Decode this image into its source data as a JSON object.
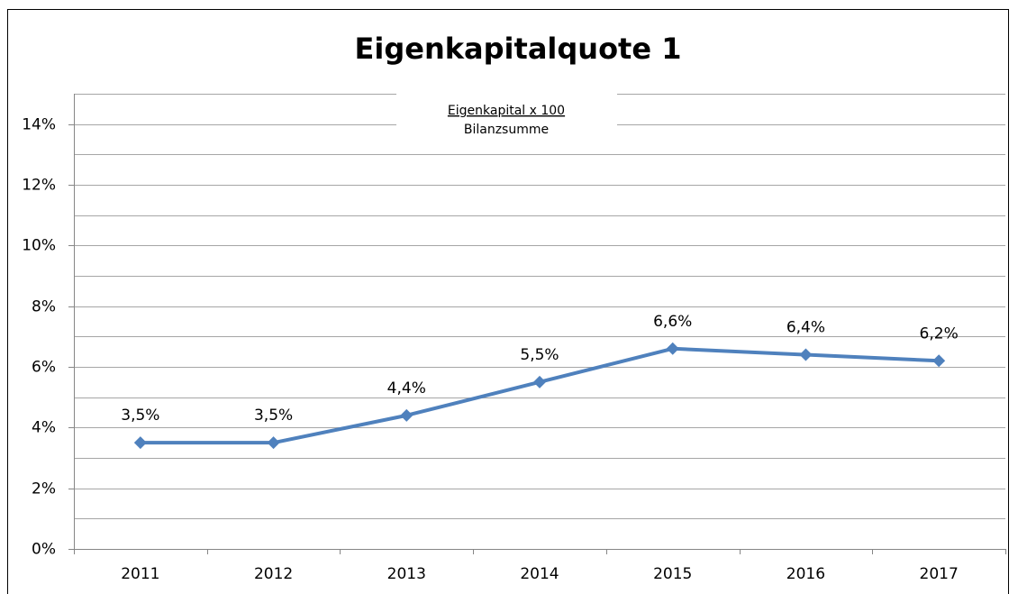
{
  "chart_data": {
    "type": "line",
    "title": "Eigenkapitalquote 1",
    "annotation": {
      "numerator": "Eigenkapital x 100",
      "denominator": "Bilanzsumme"
    },
    "categories": [
      "2011",
      "2012",
      "2013",
      "2014",
      "2015",
      "2016",
      "2017"
    ],
    "series": [
      {
        "name": "Eigenkapitalquote 1",
        "color": "#4f81bd",
        "values": [
          3.5,
          3.5,
          4.4,
          5.5,
          6.6,
          6.4,
          6.2
        ],
        "value_labels": [
          "3,5%",
          "3,5%",
          "4,4%",
          "5,5%",
          "6,6%",
          "6,4%",
          "6,2%"
        ]
      }
    ],
    "ylim": [
      0,
      15
    ],
    "yticks": [
      {
        "value": 0,
        "label": "0%"
      },
      {
        "value": 2,
        "label": "2%"
      },
      {
        "value": 4,
        "label": "4%"
      },
      {
        "value": 6,
        "label": "6%"
      },
      {
        "value": 8,
        "label": "8%"
      },
      {
        "value": 10,
        "label": "10%"
      },
      {
        "value": 12,
        "label": "12%"
      },
      {
        "value": 14,
        "label": "14%"
      }
    ],
    "minor_yticks": [
      1,
      3,
      5,
      7,
      9,
      11,
      13,
      15
    ],
    "grid": true
  }
}
